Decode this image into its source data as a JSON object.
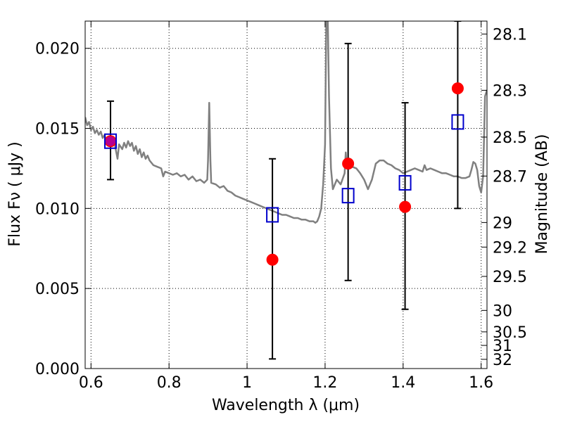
{
  "chart_data": {
    "type": "scatter",
    "xlabel": "Wavelength  λ (μm)",
    "ylabel": "Flux  Fν  ( μJy )",
    "y2label": "Magnitude (AB)",
    "xlim": [
      0.585,
      1.615
    ],
    "ylim": [
      0.0,
      0.0217
    ],
    "grid": true,
    "x_ticks": [
      {
        "value": 0.6,
        "label": "0.6"
      },
      {
        "value": 0.8,
        "label": "0.8"
      },
      {
        "value": 1.0,
        "label": "1"
      },
      {
        "value": 1.2,
        "label": "1.2"
      },
      {
        "value": 1.4,
        "label": "1.4"
      },
      {
        "value": 1.6,
        "label": "1.6"
      }
    ],
    "y_ticks": [
      {
        "value": 0.0,
        "label": "0.000"
      },
      {
        "value": 0.005,
        "label": "0.005"
      },
      {
        "value": 0.01,
        "label": "0.010"
      },
      {
        "value": 0.015,
        "label": "0.015"
      },
      {
        "value": 0.02,
        "label": "0.020"
      }
    ],
    "mag_ticks": [
      "28.1",
      "28.3",
      "28.5",
      "28.7",
      "29",
      "29.2",
      "29.5",
      "30",
      "30.5",
      "31",
      "32"
    ],
    "series": [
      {
        "kind": "line",
        "color": "#808080",
        "points": [
          [
            0.585,
            0.0157
          ],
          [
            0.59,
            0.0152
          ],
          [
            0.595,
            0.0154
          ],
          [
            0.6,
            0.0149
          ],
          [
            0.605,
            0.0151
          ],
          [
            0.61,
            0.0147
          ],
          [
            0.615,
            0.0149
          ],
          [
            0.62,
            0.0146
          ],
          [
            0.625,
            0.0148
          ],
          [
            0.63,
            0.0144
          ],
          [
            0.635,
            0.0146
          ],
          [
            0.64,
            0.014
          ],
          [
            0.645,
            0.0143
          ],
          [
            0.65,
            0.014
          ],
          [
            0.655,
            0.0143
          ],
          [
            0.66,
            0.0141
          ],
          [
            0.665,
            0.0135
          ],
          [
            0.668,
            0.0131
          ],
          [
            0.672,
            0.014
          ],
          [
            0.68,
            0.0137
          ],
          [
            0.685,
            0.0141
          ],
          [
            0.69,
            0.0138
          ],
          [
            0.695,
            0.0142
          ],
          [
            0.7,
            0.0139
          ],
          [
            0.705,
            0.0141
          ],
          [
            0.71,
            0.0136
          ],
          [
            0.715,
            0.0139
          ],
          [
            0.72,
            0.0134
          ],
          [
            0.725,
            0.0137
          ],
          [
            0.73,
            0.0132
          ],
          [
            0.735,
            0.0135
          ],
          [
            0.74,
            0.0131
          ],
          [
            0.745,
            0.0133
          ],
          [
            0.75,
            0.013
          ],
          [
            0.76,
            0.0127
          ],
          [
            0.77,
            0.0126
          ],
          [
            0.78,
            0.0125
          ],
          [
            0.785,
            0.012
          ],
          [
            0.79,
            0.0123
          ],
          [
            0.8,
            0.0122
          ],
          [
            0.81,
            0.0121
          ],
          [
            0.82,
            0.0122
          ],
          [
            0.83,
            0.012
          ],
          [
            0.84,
            0.0121
          ],
          [
            0.85,
            0.0118
          ],
          [
            0.86,
            0.012
          ],
          [
            0.87,
            0.0117
          ],
          [
            0.88,
            0.0118
          ],
          [
            0.89,
            0.0116
          ],
          [
            0.898,
            0.0118
          ],
          [
            0.9,
            0.013
          ],
          [
            0.903,
            0.0166
          ],
          [
            0.906,
            0.013
          ],
          [
            0.908,
            0.0116
          ],
          [
            0.92,
            0.0115
          ],
          [
            0.93,
            0.0113
          ],
          [
            0.94,
            0.0114
          ],
          [
            0.95,
            0.0111
          ],
          [
            0.96,
            0.011
          ],
          [
            0.97,
            0.0108
          ],
          [
            0.98,
            0.0107
          ],
          [
            0.99,
            0.0106
          ],
          [
            1.0,
            0.0105
          ],
          [
            1.01,
            0.0104
          ],
          [
            1.02,
            0.0103
          ],
          [
            1.03,
            0.0102
          ],
          [
            1.04,
            0.0101
          ],
          [
            1.05,
            0.01
          ],
          [
            1.06,
            0.0099
          ],
          [
            1.07,
            0.0098
          ],
          [
            1.08,
            0.0097
          ],
          [
            1.09,
            0.0096
          ],
          [
            1.1,
            0.0096
          ],
          [
            1.11,
            0.0095
          ],
          [
            1.12,
            0.0094
          ],
          [
            1.13,
            0.0094
          ],
          [
            1.14,
            0.0093
          ],
          [
            1.15,
            0.0093
          ],
          [
            1.16,
            0.0092
          ],
          [
            1.17,
            0.0092
          ],
          [
            1.175,
            0.0091
          ],
          [
            1.18,
            0.0092
          ],
          [
            1.185,
            0.0095
          ],
          [
            1.19,
            0.01
          ],
          [
            1.195,
            0.0115
          ],
          [
            1.2,
            0.014
          ],
          [
            1.203,
            0.0217
          ],
          [
            1.207,
            0.0217
          ],
          [
            1.21,
            0.017
          ],
          [
            1.215,
            0.0125
          ],
          [
            1.22,
            0.0112
          ],
          [
            1.23,
            0.0118
          ],
          [
            1.24,
            0.0115
          ],
          [
            1.25,
            0.0122
          ],
          [
            1.253,
            0.0135
          ],
          [
            1.256,
            0.0125
          ],
          [
            1.262,
            0.013
          ],
          [
            1.27,
            0.0126
          ],
          [
            1.28,
            0.0125
          ],
          [
            1.29,
            0.0122
          ],
          [
            1.3,
            0.0118
          ],
          [
            1.31,
            0.0112
          ],
          [
            1.32,
            0.0118
          ],
          [
            1.33,
            0.0128
          ],
          [
            1.34,
            0.013
          ],
          [
            1.35,
            0.013
          ],
          [
            1.36,
            0.0128
          ],
          [
            1.37,
            0.0127
          ],
          [
            1.38,
            0.0125
          ],
          [
            1.39,
            0.0124
          ],
          [
            1.4,
            0.0122
          ],
          [
            1.41,
            0.0123
          ],
          [
            1.42,
            0.0124
          ],
          [
            1.43,
            0.0125
          ],
          [
            1.44,
            0.0124
          ],
          [
            1.45,
            0.0123
          ],
          [
            1.455,
            0.0127
          ],
          [
            1.46,
            0.0124
          ],
          [
            1.47,
            0.0125
          ],
          [
            1.48,
            0.0124
          ],
          [
            1.49,
            0.0123
          ],
          [
            1.5,
            0.0122
          ],
          [
            1.51,
            0.0122
          ],
          [
            1.52,
            0.0121
          ],
          [
            1.53,
            0.012
          ],
          [
            1.54,
            0.012
          ],
          [
            1.55,
            0.0119
          ],
          [
            1.56,
            0.0119
          ],
          [
            1.57,
            0.012
          ],
          [
            1.575,
            0.0124
          ],
          [
            1.58,
            0.0129
          ],
          [
            1.585,
            0.0128
          ],
          [
            1.59,
            0.0124
          ],
          [
            1.595,
            0.0114
          ],
          [
            1.6,
            0.011
          ],
          [
            1.605,
            0.012
          ],
          [
            1.61,
            0.017
          ],
          [
            1.615,
            0.0174
          ]
        ]
      },
      {
        "kind": "model_points",
        "marker": "open-square",
        "color": "#0000cc",
        "x": [
          0.65,
          1.065,
          1.259,
          1.405,
          1.54
        ],
        "y": [
          0.0142,
          0.0096,
          0.0108,
          0.0116,
          0.0154
        ]
      },
      {
        "kind": "observed_points",
        "marker": "filled-circle",
        "color": "#ff0000",
        "x": [
          0.65,
          1.065,
          1.259,
          1.405,
          1.54
        ],
        "y": [
          0.0142,
          0.0068,
          0.0128,
          0.0101,
          0.0175
        ],
        "yerr_low": [
          0.0118,
          0.0006,
          0.0055,
          0.0037,
          0.01
        ],
        "yerr_high": [
          0.0167,
          0.0131,
          0.0203,
          0.0166,
          0.0217
        ]
      }
    ]
  }
}
